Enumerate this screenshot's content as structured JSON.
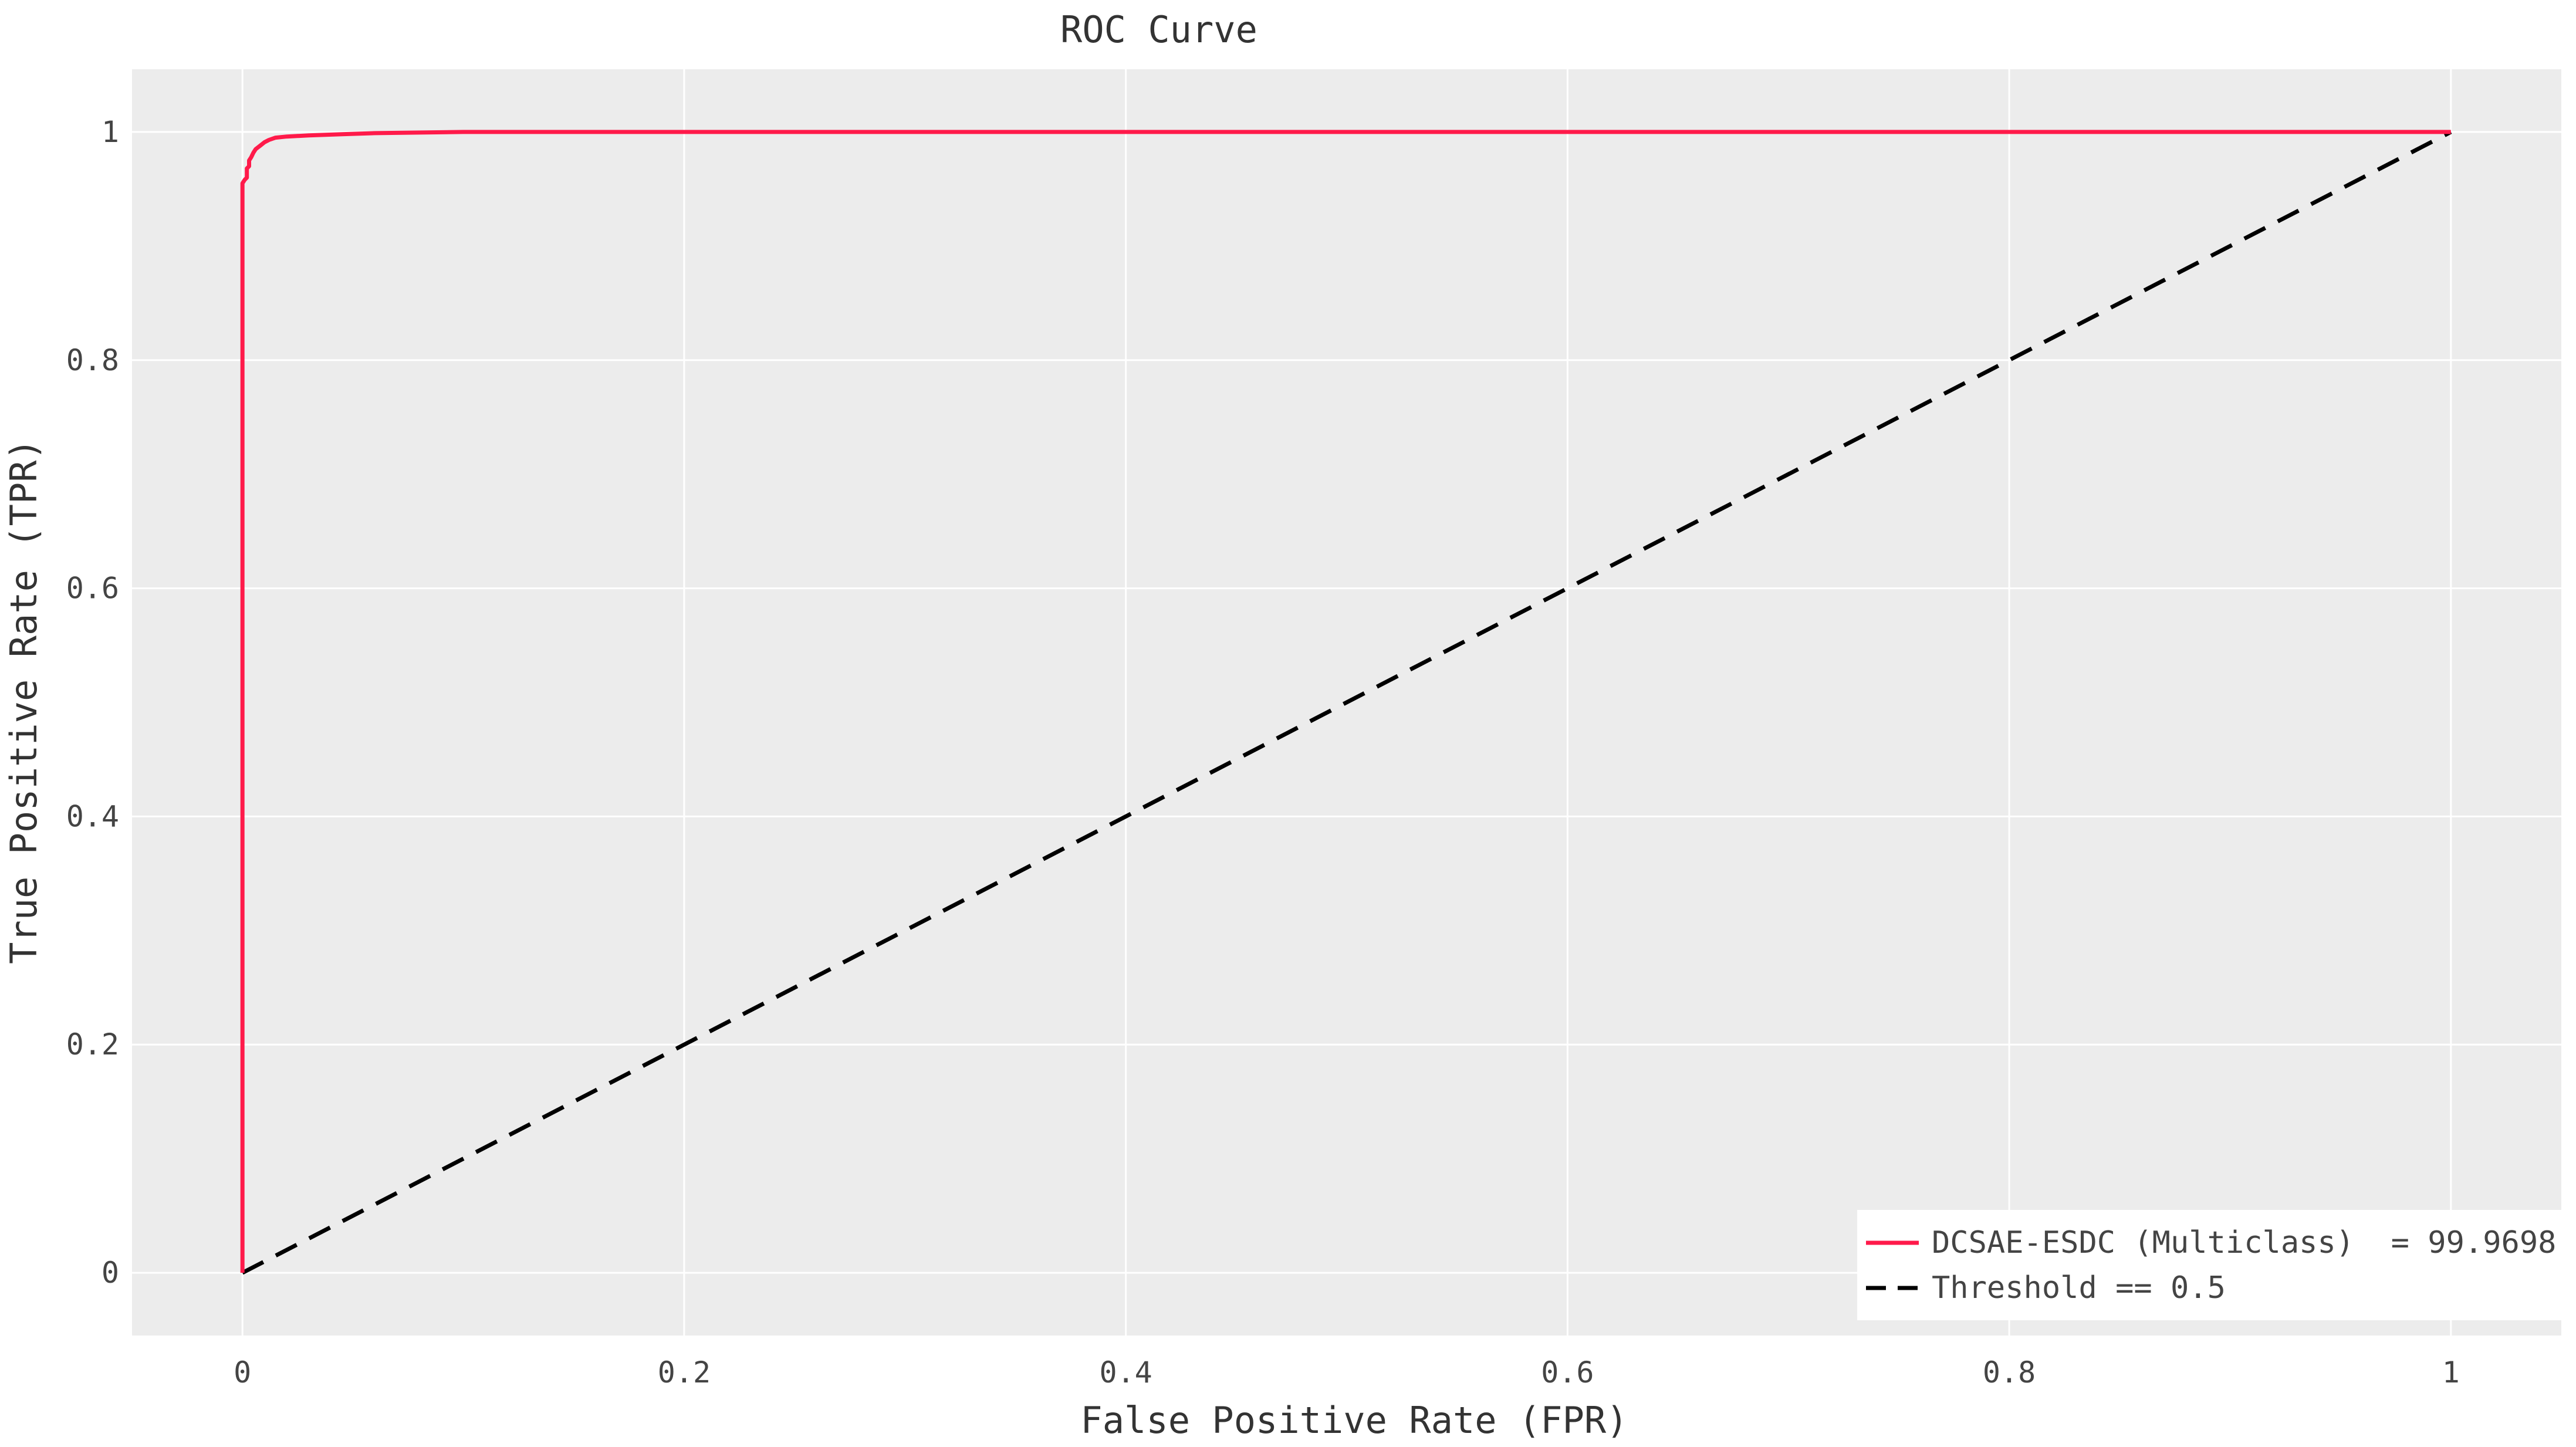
{
  "chart_data": {
    "type": "line",
    "title": "ROC Curve",
    "xlabel": "False Positive Rate (FPR)",
    "ylabel": "True Positive Rate (TPR)",
    "xlim": [
      -0.05,
      1.05
    ],
    "ylim": [
      -0.055,
      1.055
    ],
    "xticks": [
      0,
      0.2,
      0.4,
      0.6,
      0.8,
      1
    ],
    "xtick_labels": [
      "0",
      "0.2",
      "0.4",
      "0.6",
      "0.8",
      "1"
    ],
    "yticks": [
      0,
      0.2,
      0.4,
      0.6,
      0.8,
      1
    ],
    "ytick_labels": [
      "0",
      "0.2",
      "0.4",
      "0.6",
      "0.8",
      "1"
    ],
    "grid": true,
    "legend_position": "bottom-right",
    "background_color": "#ececec",
    "series": [
      {
        "name": "DCSAE-ESDC (Multiclass)  = 99.9698",
        "color": "#ff1a4a",
        "dash": "solid",
        "x": [
          0,
          0,
          0.001,
          0.002,
          0.002,
          0.003,
          0.003,
          0.004,
          0.005,
          0.006,
          0.008,
          0.01,
          0.012,
          0.015,
          0.02,
          0.03,
          0.045,
          0.06,
          0.1,
          0.3,
          0.6,
          1.0
        ],
        "y": [
          0,
          0.955,
          0.958,
          0.96,
          0.968,
          0.97,
          0.975,
          0.978,
          0.982,
          0.985,
          0.988,
          0.991,
          0.993,
          0.995,
          0.996,
          0.997,
          0.998,
          0.999,
          1.0,
          1.0,
          1.0,
          1.0
        ]
      },
      {
        "name": "Threshold == 0.5",
        "color": "#000000",
        "dash": "dashed",
        "x": [
          0,
          1
        ],
        "y": [
          0,
          1
        ]
      }
    ]
  }
}
